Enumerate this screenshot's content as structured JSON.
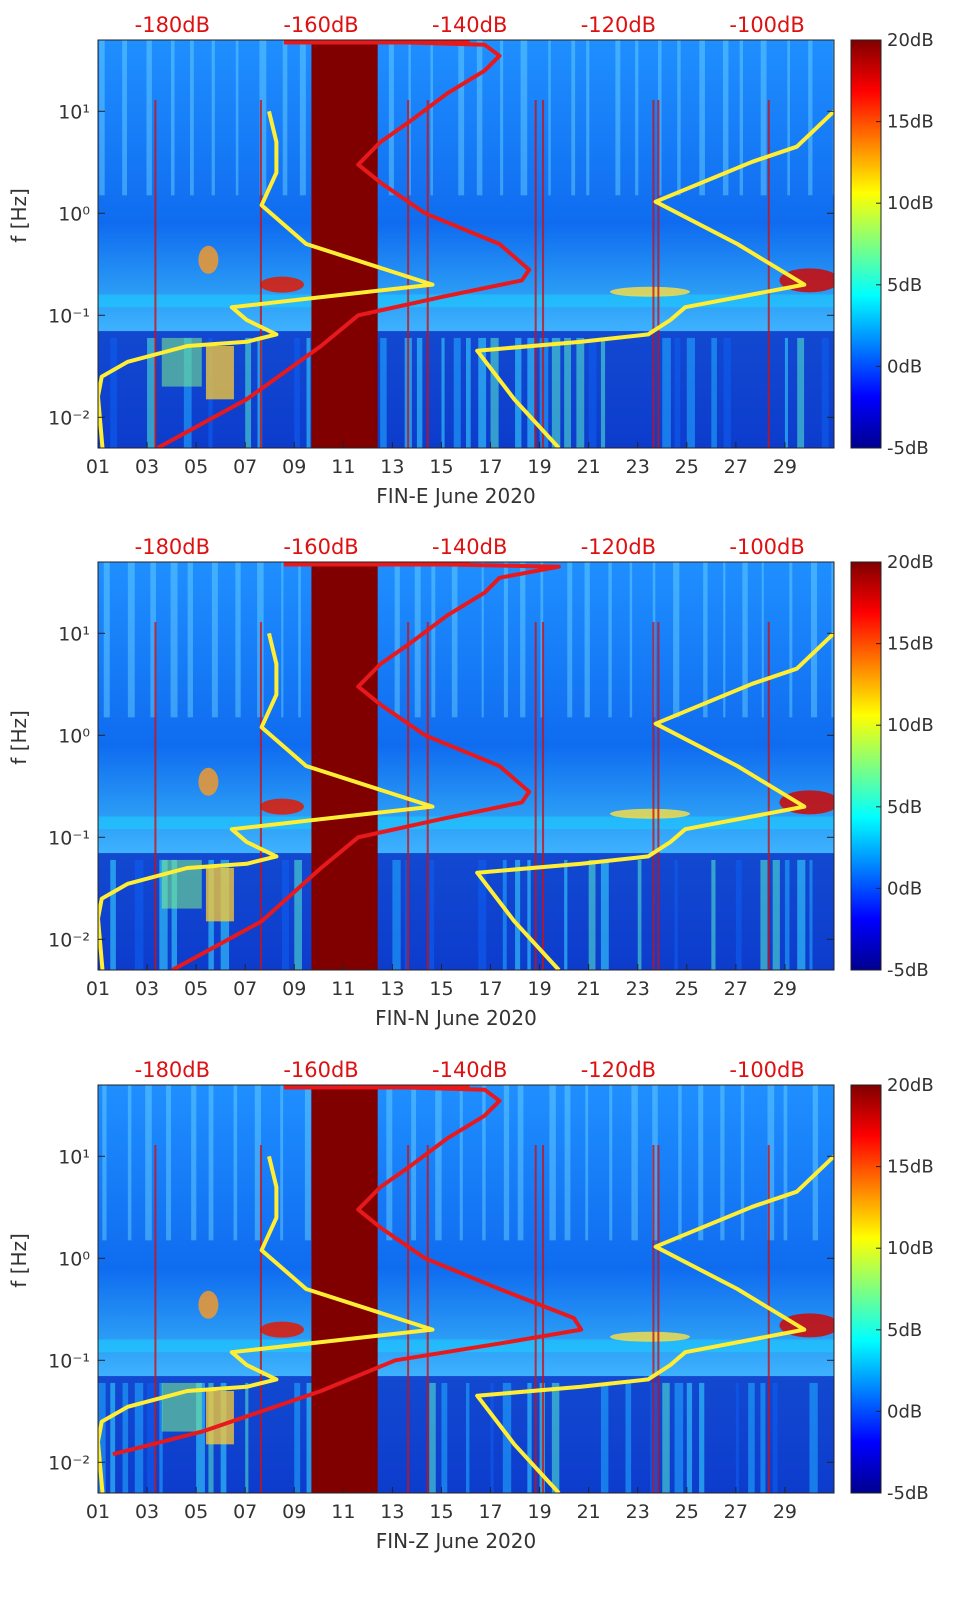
{
  "chart_data": {
    "type": "heatmap",
    "description_kind": "spectrogram",
    "panels": [
      {
        "id": "E",
        "xlabel": "FIN-E June 2020",
        "ylabel": "f [Hz]",
        "x_ticks": [
          "01",
          "03",
          "05",
          "07",
          "09",
          "11",
          "13",
          "15",
          "17",
          "19",
          "21",
          "23",
          "25",
          "27",
          "29"
        ],
        "x_range_days": [
          1,
          31
        ],
        "y_ticks": [
          {
            "value": 0.01,
            "label": "10⁻²"
          },
          {
            "value": 0.1,
            "label": "10⁻¹"
          },
          {
            "value": 1,
            "label": "10⁰"
          },
          {
            "value": 10,
            "label": "10¹"
          }
        ],
        "y_range_hz": [
          0.005,
          50
        ],
        "y_scale": "log",
        "top_axis_labels": [
          "-180dB",
          "-160dB",
          "-140dB",
          "-120dB",
          "-100dB"
        ],
        "top_axis_range_db": [
          -190,
          -91
        ],
        "colorbar": {
          "labels": [
            "20dB",
            "15dB",
            "10dB",
            "5dB",
            "0dB",
            "-5dB"
          ],
          "range_db": [
            -5,
            20
          ],
          "colormap": "jet"
        },
        "gap_days": [
          9.7,
          12.4
        ],
        "series": [
          {
            "color": "#ffee33",
            "curve": "yellow-left",
            "points_db_hz": [
              [
                -189.4,
                0.005
              ],
              [
                -190,
                0.016
              ],
              [
                -189.5,
                0.025
              ],
              [
                -186,
                0.035
              ],
              [
                -178,
                0.05
              ],
              [
                -170,
                0.055
              ],
              [
                -166,
                0.065
              ],
              [
                -170,
                0.09
              ],
              [
                -172,
                0.12
              ],
              [
                -145,
                0.2
              ],
              [
                -162,
                0.5
              ],
              [
                -168,
                1.2
              ],
              [
                -166,
                2.5
              ],
              [
                -166,
                5
              ],
              [
                -167,
                10
              ]
            ]
          },
          {
            "color": "#ffee33",
            "curve": "yellow-right",
            "points_db_hz": [
              [
                -128,
                0.005
              ],
              [
                -134,
                0.015
              ],
              [
                -139,
                0.045
              ],
              [
                -125,
                0.055
              ],
              [
                -116,
                0.065
              ],
              [
                -113,
                0.09
              ],
              [
                -111,
                0.12
              ],
              [
                -95,
                0.2
              ],
              [
                -104,
                0.5
              ],
              [
                -115,
                1.3
              ],
              [
                -102,
                3.2
              ],
              [
                -96,
                4.5
              ],
              [
                -91,
                10
              ]
            ]
          },
          {
            "color": "#e8191c",
            "curve": "red-profile",
            "points_db_hz": [
              [
                -182,
                0.005
              ],
              [
                -170,
                0.015
              ],
              [
                -160,
                0.05
              ],
              [
                -155,
                0.1
              ],
              [
                -144,
                0.15
              ],
              [
                -133,
                0.22
              ],
              [
                -132,
                0.28
              ],
              [
                -136,
                0.5
              ],
              [
                -146,
                1
              ],
              [
                -152,
                2
              ],
              [
                -155,
                3
              ],
              [
                -152,
                5
              ],
              [
                -148,
                8
              ],
              [
                -143,
                15
              ],
              [
                -138,
                25
              ],
              [
                -136,
                35
              ],
              [
                -138,
                45
              ],
              [
                -160,
                50
              ]
            ]
          }
        ]
      },
      {
        "id": "N",
        "xlabel": "FIN-N June 2020",
        "ylabel": "f [Hz]",
        "x_ticks": [
          "01",
          "03",
          "05",
          "07",
          "09",
          "11",
          "13",
          "15",
          "17",
          "19",
          "21",
          "23",
          "25",
          "27",
          "29"
        ],
        "x_range_days": [
          1,
          31
        ],
        "y_ticks": [
          {
            "value": 0.01,
            "label": "10⁻²"
          },
          {
            "value": 0.1,
            "label": "10⁻¹"
          },
          {
            "value": 1,
            "label": "10⁰"
          },
          {
            "value": 10,
            "label": "10¹"
          }
        ],
        "y_range_hz": [
          0.005,
          50
        ],
        "y_scale": "log",
        "top_axis_labels": [
          "-180dB",
          "-160dB",
          "-140dB",
          "-120dB",
          "-100dB"
        ],
        "top_axis_range_db": [
          -190,
          -91
        ],
        "colorbar": {
          "labels": [
            "20dB",
            "15dB",
            "10dB",
            "5dB",
            "0dB",
            "-5dB"
          ],
          "range_db": [
            -5,
            20
          ],
          "colormap": "jet"
        },
        "gap_days": [
          9.7,
          12.4
        ],
        "series": [
          {
            "color": "#ffee33",
            "curve": "yellow-left",
            "points_db_hz": [
              [
                -189.4,
                0.005
              ],
              [
                -190,
                0.016
              ],
              [
                -189.5,
                0.025
              ],
              [
                -186,
                0.035
              ],
              [
                -178,
                0.05
              ],
              [
                -170,
                0.055
              ],
              [
                -166,
                0.065
              ],
              [
                -170,
                0.09
              ],
              [
                -172,
                0.12
              ],
              [
                -145,
                0.2
              ],
              [
                -162,
                0.5
              ],
              [
                -168,
                1.2
              ],
              [
                -166,
                2.5
              ],
              [
                -166,
                5
              ],
              [
                -167,
                10
              ]
            ]
          },
          {
            "color": "#ffee33",
            "curve": "yellow-right",
            "points_db_hz": [
              [
                -128,
                0.005
              ],
              [
                -134,
                0.015
              ],
              [
                -139,
                0.045
              ],
              [
                -125,
                0.055
              ],
              [
                -116,
                0.065
              ],
              [
                -113,
                0.09
              ],
              [
                -111,
                0.12
              ],
              [
                -95,
                0.2
              ],
              [
                -104,
                0.5
              ],
              [
                -115,
                1.3
              ],
              [
                -102,
                3.2
              ],
              [
                -96,
                4.5
              ],
              [
                -91,
                10
              ]
            ]
          },
          {
            "color": "#e8191c",
            "curve": "red-profile",
            "points_db_hz": [
              [
                -180,
                0.005
              ],
              [
                -168,
                0.015
              ],
              [
                -160,
                0.05
              ],
              [
                -155,
                0.1
              ],
              [
                -144,
                0.15
              ],
              [
                -133,
                0.22
              ],
              [
                -132,
                0.28
              ],
              [
                -136,
                0.5
              ],
              [
                -146,
                1
              ],
              [
                -152,
                2
              ],
              [
                -155,
                3
              ],
              [
                -152,
                5
              ],
              [
                -148,
                8
              ],
              [
                -143,
                15
              ],
              [
                -138,
                25
              ],
              [
                -136,
                35
              ],
              [
                -128,
                45
              ],
              [
                -160,
                50
              ]
            ]
          }
        ]
      },
      {
        "id": "Z",
        "xlabel": "FIN-Z June 2020",
        "ylabel": "f [Hz]",
        "x_ticks": [
          "01",
          "03",
          "05",
          "07",
          "09",
          "11",
          "13",
          "15",
          "17",
          "19",
          "21",
          "23",
          "25",
          "27",
          "29"
        ],
        "x_range_days": [
          1,
          31
        ],
        "y_ticks": [
          {
            "value": 0.01,
            "label": "10⁻²"
          },
          {
            "value": 0.1,
            "label": "10⁻¹"
          },
          {
            "value": 1,
            "label": "10⁰"
          },
          {
            "value": 10,
            "label": "10¹"
          }
        ],
        "y_range_hz": [
          0.005,
          50
        ],
        "y_scale": "log",
        "top_axis_labels": [
          "-180dB",
          "-160dB",
          "-140dB",
          "-120dB",
          "-100dB"
        ],
        "top_axis_range_db": [
          -190,
          -91
        ],
        "colorbar": {
          "labels": [
            "20dB",
            "15dB",
            "10dB",
            "5dB",
            "0dB",
            "-5dB"
          ],
          "range_db": [
            -5,
            20
          ],
          "colormap": "jet"
        },
        "gap_days": [
          9.7,
          12.4
        ],
        "series": [
          {
            "color": "#ffee33",
            "curve": "yellow-left",
            "points_db_hz": [
              [
                -189.4,
                0.005
              ],
              [
                -190,
                0.016
              ],
              [
                -189.5,
                0.025
              ],
              [
                -186,
                0.035
              ],
              [
                -178,
                0.05
              ],
              [
                -170,
                0.055
              ],
              [
                -166,
                0.065
              ],
              [
                -170,
                0.09
              ],
              [
                -172,
                0.12
              ],
              [
                -145,
                0.2
              ],
              [
                -162,
                0.5
              ],
              [
                -168,
                1.2
              ],
              [
                -166,
                2.5
              ],
              [
                -166,
                5
              ],
              [
                -167,
                10
              ]
            ]
          },
          {
            "color": "#ffee33",
            "curve": "yellow-right",
            "points_db_hz": [
              [
                -128,
                0.005
              ],
              [
                -134,
                0.015
              ],
              [
                -139,
                0.045
              ],
              [
                -125,
                0.055
              ],
              [
                -116,
                0.065
              ],
              [
                -113,
                0.09
              ],
              [
                -111,
                0.12
              ],
              [
                -95,
                0.2
              ],
              [
                -104,
                0.5
              ],
              [
                -115,
                1.3
              ],
              [
                -102,
                3.2
              ],
              [
                -96,
                4.5
              ],
              [
                -91,
                10
              ]
            ]
          },
          {
            "color": "#e8191c",
            "curve": "red-profile",
            "points_db_hz": [
              [
                -188,
                0.012
              ],
              [
                -176,
                0.02
              ],
              [
                -160,
                0.05
              ],
              [
                -150,
                0.1
              ],
              [
                -135,
                0.15
              ],
              [
                -125,
                0.2
              ],
              [
                -126,
                0.26
              ],
              [
                -136,
                0.5
              ],
              [
                -146,
                1
              ],
              [
                -152,
                2
              ],
              [
                -155,
                3
              ],
              [
                -152,
                5
              ],
              [
                -148,
                8
              ],
              [
                -143,
                15
              ],
              [
                -138,
                25
              ],
              [
                -136,
                35
              ],
              [
                -138,
                45
              ],
              [
                -160,
                50
              ]
            ]
          }
        ]
      }
    ]
  },
  "theme": {
    "curve_red": "#e8191c",
    "curve_yellow": "#ffee33",
    "gap_fill": "#800000",
    "top_label_color": "#dd1111",
    "text_color": "#333333"
  }
}
